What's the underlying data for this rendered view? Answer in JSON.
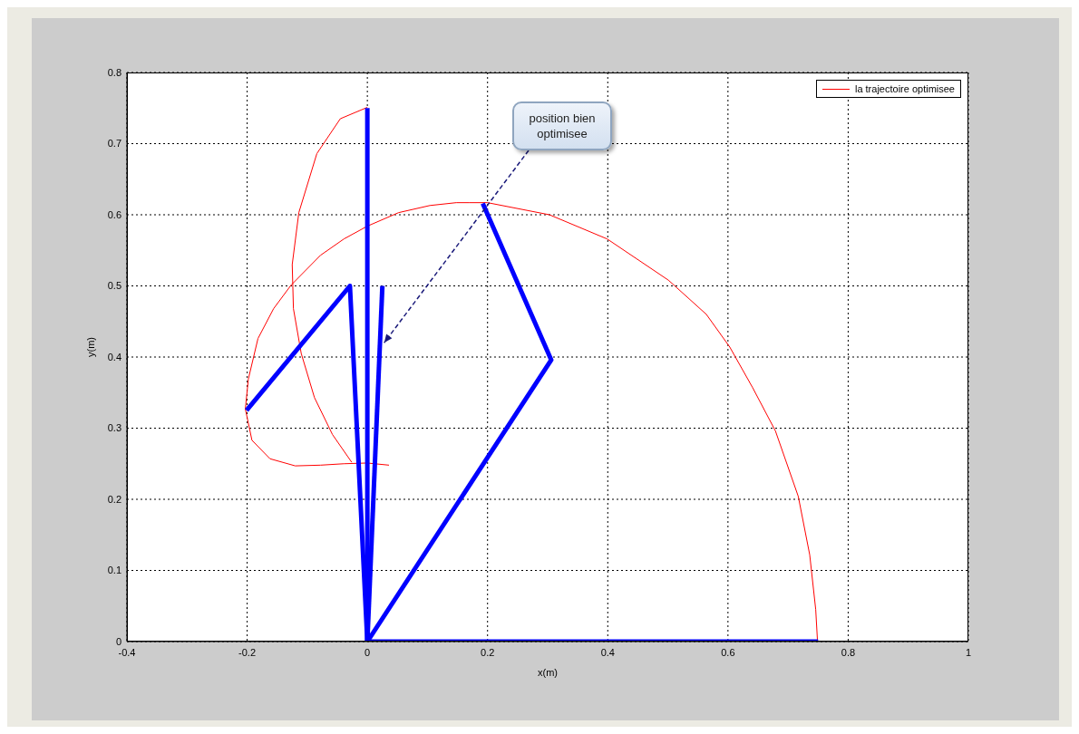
{
  "chart_data": {
    "type": "line",
    "xlabel": "x(m)",
    "ylabel": "y(m)",
    "xlim": [
      -0.4,
      1
    ],
    "xticks": [
      -0.4,
      -0.2,
      0,
      0.2,
      0.4,
      0.6,
      0.8,
      1
    ],
    "ylim": [
      0,
      0.8
    ],
    "yticks": [
      0,
      0.1,
      0.2,
      0.3,
      0.4,
      0.5,
      0.6,
      0.7,
      0.8
    ],
    "grid": true,
    "legend": "top right",
    "marker": "none",
    "line_style": "solid",
    "series": [
      {
        "name": "la trajectoire optimisee",
        "color": "#ff0000",
        "x": [
          0.749,
          0.746,
          0.736,
          0.717,
          0.679,
          0.641,
          0.603,
          0.564,
          0.501,
          0.399,
          0.303,
          0.2,
          0.169,
          0.148,
          0.104,
          0.052,
          0,
          -0.039,
          -0.078,
          -0.127,
          -0.156,
          -0.182,
          -0.198,
          -0.203,
          -0.192,
          -0.162,
          -0.12,
          -0.078,
          -0.039,
          0,
          0.036,
          null,
          -0.026,
          -0.058,
          -0.088,
          -0.11,
          -0.123,
          -0.125,
          -0.114,
          -0.084,
          -0.045,
          0
        ],
        "values": [
          0,
          0.045,
          0.122,
          0.204,
          0.296,
          0.357,
          0.414,
          0.46,
          0.508,
          0.566,
          0.6,
          0.617,
          0.617,
          0.617,
          0.613,
          0.603,
          0.584,
          0.566,
          0.543,
          0.501,
          0.468,
          0.426,
          0.369,
          0.327,
          0.283,
          0.257,
          0.247,
          0.248,
          0.25,
          0.251,
          0.248,
          null,
          0.252,
          0.291,
          0.343,
          0.405,
          0.468,
          0.53,
          0.603,
          0.686,
          0.735,
          0.751
        ]
      },
      {
        "color": "#0000ff",
        "x": [
          0,
          0.75
        ],
        "values": [
          0,
          0
        ]
      },
      {
        "color": "#0000ff",
        "x": [
          0,
          0.306,
          0.192
        ],
        "values": [
          0,
          0.396,
          0.616
        ]
      },
      {
        "color": "#0000ff",
        "x": [
          0,
          -0.029,
          -0.201
        ],
        "values": [
          0,
          0.5,
          0.325
        ]
      },
      {
        "color": "#0000ff",
        "x": [
          0,
          0
        ],
        "values": [
          0,
          0.75
        ]
      },
      {
        "color": "#0000ff",
        "x": [
          0,
          0.025
        ],
        "values": [
          0,
          0.5
        ]
      }
    ],
    "annotations": [
      {
        "text": "position bien optimisee",
        "x": 0.028,
        "y": 0.42
      }
    ]
  }
}
